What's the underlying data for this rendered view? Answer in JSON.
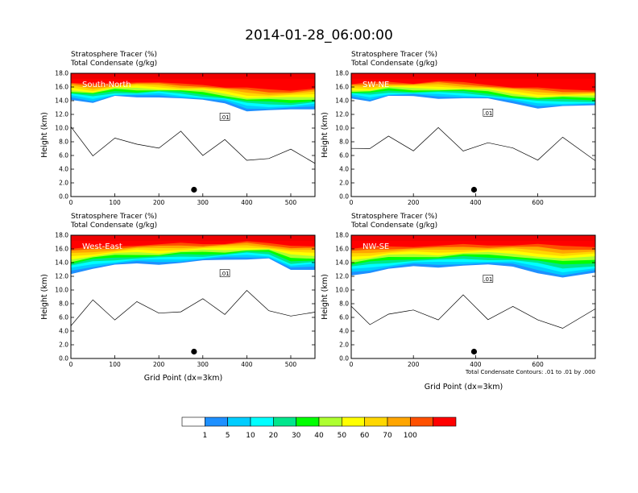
{
  "title": "2014-01-28_06:00:00",
  "field_labels": {
    "tracer": "Stratosphere Tracer   (%)",
    "condensate": "Total Condensate   (g/kg)"
  },
  "xlabel": "Grid Point (dx=3km)",
  "ylabel": "Height (km)",
  "contour_note": "Total Condensate Contours: .01 to .01 by .000",
  "contour_label": ".01",
  "colorbar": {
    "labels": [
      "1",
      "5",
      "10",
      "20",
      "30",
      "40",
      "50",
      "60",
      "70",
      "100"
    ],
    "colors": [
      "#ffffff",
      "#1e90ff",
      "#00cdff",
      "#00ffff",
      "#00e68c",
      "#00ff00",
      "#adff2f",
      "#ffff00",
      "#ffd700",
      "#ffa500",
      "#ff5000",
      "#ff0000"
    ]
  },
  "chart_data": [
    {
      "type": "heatmap",
      "panel": "South-North",
      "x_ticks": [
        "0",
        "100",
        "200",
        "300",
        "400",
        "500"
      ],
      "y_ticks": [
        "0.0",
        "2.0",
        "4.0",
        "6.0",
        "8.0",
        "10.0",
        "12.0",
        "14.0",
        "16.0",
        "18.0"
      ],
      "xlim": [
        0,
        555
      ],
      "ylim": [
        0,
        18
      ],
      "x": [
        0,
        50,
        100,
        150,
        200,
        250,
        300,
        350,
        400,
        450,
        500,
        555
      ],
      "tracer_bottom_km": [
        14.2,
        13.8,
        14.6,
        14.4,
        14.6,
        14.4,
        14.0,
        13.6,
        12.6,
        12.6,
        12.6,
        12.8
      ],
      "red_bottom_km": [
        16.6,
        16.3,
        16.6,
        16.8,
        16.6,
        16.4,
        16.4,
        16.0,
        15.8,
        15.6,
        15.6,
        15.8
      ],
      "marker": {
        "x": 280,
        "y_km": 1.0
      }
    },
    {
      "type": "heatmap",
      "panel": "SW-NE",
      "x_ticks": [
        "0",
        "200",
        "400",
        "600"
      ],
      "y_ticks": [
        "0.0",
        "2.0",
        "4.0",
        "6.0",
        "8.0",
        "10.0",
        "12.0",
        "14.0",
        "16.0",
        "18.0"
      ],
      "xlim": [
        0,
        785
      ],
      "ylim": [
        0,
        18
      ],
      "x": [
        0,
        60,
        120,
        200,
        280,
        360,
        440,
        520,
        600,
        680,
        785
      ],
      "tracer_bottom_km": [
        14.4,
        14.0,
        14.6,
        14.6,
        14.4,
        14.4,
        14.2,
        13.6,
        13.0,
        13.2,
        13.2
      ],
      "red_bottom_km": [
        16.4,
        16.6,
        16.8,
        16.6,
        16.8,
        16.6,
        16.4,
        16.0,
        15.8,
        15.6,
        15.6
      ],
      "marker": {
        "x": 395,
        "y_km": 1.0
      }
    },
    {
      "type": "heatmap",
      "panel": "West-East",
      "x_ticks": [
        "0",
        "100",
        "200",
        "300",
        "400",
        "500"
      ],
      "y_ticks": [
        "0.0",
        "2.0",
        "4.0",
        "6.0",
        "8.0",
        "10.0",
        "12.0",
        "14.0",
        "16.0",
        "18.0"
      ],
      "xlim": [
        0,
        555
      ],
      "ylim": [
        0,
        18
      ],
      "x": [
        0,
        50,
        100,
        150,
        200,
        250,
        300,
        350,
        400,
        450,
        500,
        555
      ],
      "tracer_bottom_km": [
        12.4,
        13.2,
        13.6,
        13.8,
        13.8,
        14.0,
        14.2,
        14.4,
        14.6,
        14.6,
        12.8,
        13.0
      ],
      "red_bottom_km": [
        16.0,
        16.2,
        16.4,
        16.6,
        16.6,
        16.8,
        16.8,
        16.8,
        17.0,
        16.8,
        16.6,
        16.4
      ],
      "marker": {
        "x": 280,
        "y_km": 1.0
      }
    },
    {
      "type": "heatmap",
      "panel": "NW-SE",
      "x_ticks": [
        "0",
        "200",
        "400",
        "600"
      ],
      "y_ticks": [
        "0.0",
        "2.0",
        "4.0",
        "6.0",
        "8.0",
        "10.0",
        "12.0",
        "14.0",
        "16.0",
        "18.0"
      ],
      "xlim": [
        0,
        785
      ],
      "ylim": [
        0,
        18
      ],
      "x": [
        0,
        60,
        120,
        200,
        280,
        360,
        440,
        520,
        600,
        680,
        785
      ],
      "tracer_bottom_km": [
        12.2,
        12.6,
        13.0,
        13.4,
        13.4,
        13.6,
        13.6,
        13.4,
        12.6,
        11.8,
        12.4
      ],
      "red_bottom_km": [
        16.0,
        16.2,
        16.4,
        16.4,
        16.4,
        16.6,
        16.6,
        16.6,
        16.6,
        16.4,
        16.4
      ],
      "marker": {
        "x": 395,
        "y_km": 1.0
      }
    }
  ]
}
